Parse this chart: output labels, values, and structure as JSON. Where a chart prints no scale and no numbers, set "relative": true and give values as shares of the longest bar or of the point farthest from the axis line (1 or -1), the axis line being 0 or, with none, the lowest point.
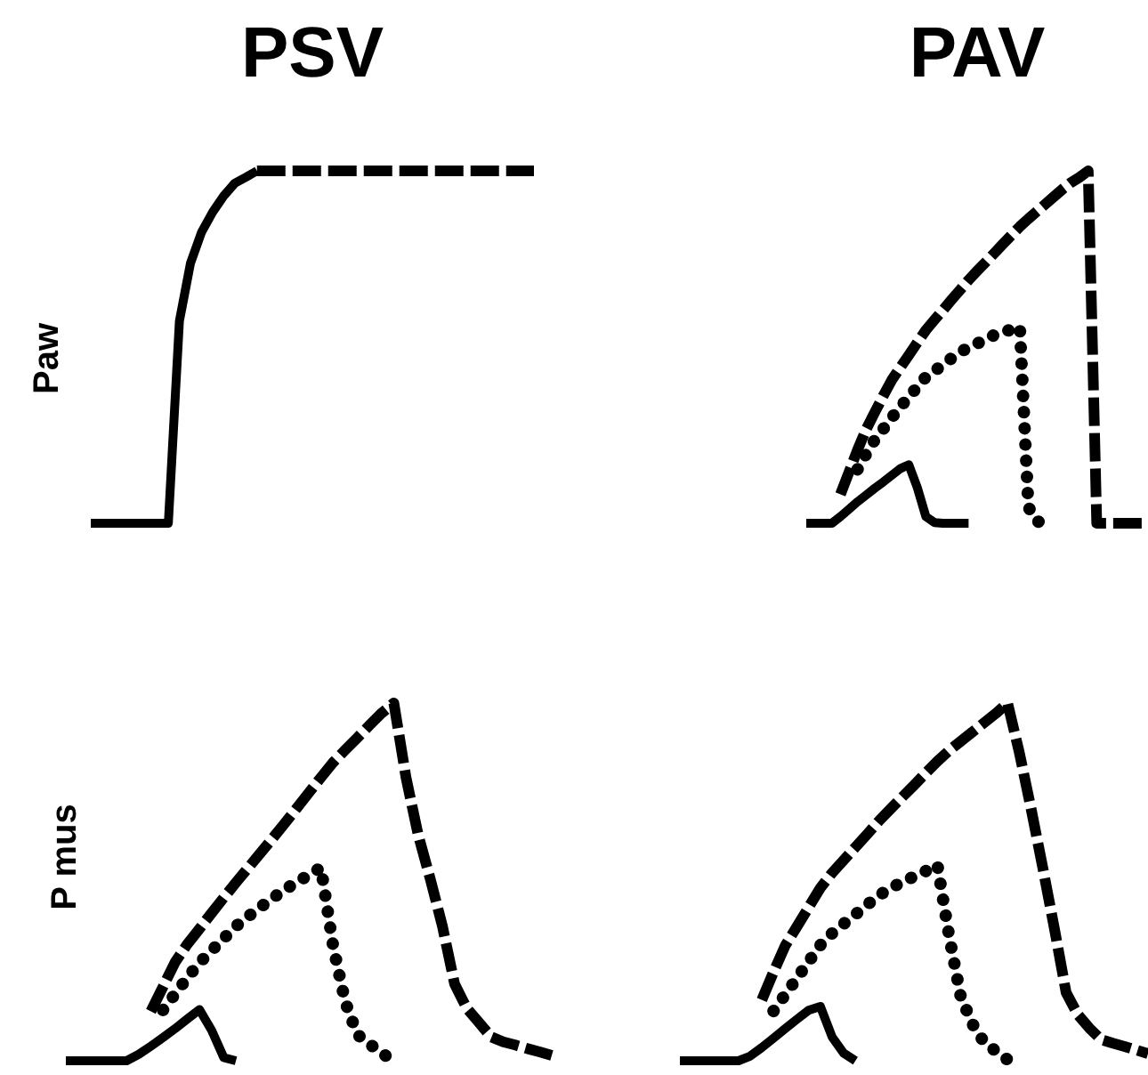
{
  "chart_data": [
    {
      "type": "line",
      "title": "PSV",
      "ylabel": "Paw",
      "relative": true,
      "marker": "none",
      "categories": [
        null,
        null,
        null,
        null,
        null,
        null,
        null,
        null,
        null,
        null,
        null,
        null,
        null,
        null,
        null,
        null,
        null,
        null,
        null,
        null,
        null,
        null,
        null,
        null,
        null,
        null,
        null,
        null,
        null,
        null,
        null,
        null,
        null,
        null,
        null,
        null,
        null,
        null,
        null,
        null,
        null
      ],
      "series": [
        {
          "color": "#000000",
          "line_style": "solid",
          "values": [
            0,
            0,
            0,
            0,
            0,
            0,
            0,
            0,
            0.574,
            0.738,
            0.826,
            0.883,
            0.929,
            0.965,
            0.982,
            1,
            null,
            null,
            null,
            null,
            null,
            null,
            null,
            null,
            null,
            null,
            null,
            null,
            null,
            null,
            null,
            null,
            null,
            null,
            null,
            null,
            null,
            null,
            null,
            null,
            null
          ]
        },
        {
          "color": "#000000",
          "line_style": "dashed",
          "values": [
            null,
            null,
            null,
            null,
            null,
            null,
            null,
            null,
            null,
            null,
            null,
            null,
            null,
            null,
            null,
            1,
            1,
            1,
            1,
            1,
            1,
            1,
            1,
            1,
            1,
            1,
            1,
            1,
            1,
            1,
            1,
            1,
            1,
            1,
            1,
            1,
            1,
            1,
            1,
            1,
            1
          ]
        }
      ]
    },
    {
      "type": "line",
      "title": "PAV",
      "relative": true,
      "marker": "none",
      "categories": [
        null,
        null,
        null,
        null,
        null,
        null,
        null,
        null,
        null,
        null,
        null,
        null,
        null,
        null,
        null,
        null,
        null,
        null,
        null,
        null,
        null,
        null,
        null,
        null,
        null,
        null,
        null,
        null,
        null,
        null,
        null,
        null,
        null,
        null,
        null,
        null,
        null,
        null,
        null,
        null,
        null
      ],
      "series": [
        {
          "color": "#000000",
          "line_style": "solid",
          "values": [
            0,
            0,
            0,
            0,
            0.019,
            0.04,
            0.061,
            0.08,
            0.099,
            0.117,
            0.136,
            0.155,
            0.166,
            0.101,
            0.019,
            0.002,
            0,
            0,
            0,
            0,
            null,
            null,
            null,
            null,
            null,
            null,
            null,
            null,
            null,
            null,
            null,
            null,
            null,
            null,
            null,
            null,
            null,
            null,
            null,
            null,
            null
          ]
        },
        {
          "color": "#000000",
          "line_style": "dotted",
          "values": [
            null,
            null,
            null,
            null,
            null,
            null,
            0.153,
            0.196,
            0.236,
            0.267,
            0.299,
            0.33,
            0.358,
            0.387,
            0.415,
            0.432,
            0.45,
            0.468,
            0.486,
            0.498,
            0.51,
            0.522,
            0.534,
            0.542,
            0.55,
            0.557,
            0.046,
            0.005,
            0.003,
            0,
            null,
            null,
            null,
            null,
            null,
            null,
            null,
            null,
            null,
            null,
            null
          ]
        },
        {
          "color": "#000000",
          "line_style": "dashed",
          "values": [
            null,
            null,
            null,
            null,
            0.082,
            0.145,
            0.208,
            0.266,
            0.314,
            0.361,
            0.406,
            0.442,
            0.477,
            0.513,
            0.548,
            0.577,
            0.605,
            0.634,
            0.662,
            0.69,
            0.716,
            0.741,
            0.766,
            0.792,
            0.817,
            0.842,
            0.864,
            0.885,
            0.906,
            0.927,
            0.948,
            0.967,
            0.982,
            1,
            0,
            0,
            0,
            0,
            0,
            0,
            0
          ]
        }
      ]
    },
    {
      "type": "line",
      "ylabel": "P mus",
      "relative": true,
      "marker": "none",
      "categories": [
        null,
        null,
        null,
        null,
        null,
        null,
        null,
        null,
        null,
        null,
        null,
        null,
        null,
        null,
        null,
        null,
        null,
        null,
        null,
        null,
        null,
        null,
        null,
        null,
        null,
        null,
        null,
        null,
        null,
        null,
        null,
        null,
        null,
        null,
        null,
        null,
        null,
        null,
        null,
        null,
        null
      ],
      "series": [
        {
          "color": "#000000",
          "line_style": "solid",
          "values": [
            0,
            0,
            0,
            0,
            0,
            0,
            0.018,
            0.041,
            0.065,
            0.09,
            0.117,
            0.143,
            0.085,
            0.009,
            0,
            null,
            null,
            null,
            null,
            null,
            null,
            null,
            null,
            null,
            null,
            null,
            null,
            null,
            null,
            null,
            null,
            null,
            null,
            null,
            null,
            null,
            null,
            null,
            null,
            null,
            null
          ]
        },
        {
          "color": "#000000",
          "line_style": "dotted",
          "values": [
            null,
            null,
            null,
            null,
            null,
            null,
            null,
            null,
            0.142,
            0.187,
            0.232,
            0.274,
            0.308,
            0.342,
            0.376,
            0.403,
            0.429,
            0.454,
            0.478,
            0.499,
            0.519,
            0.54,
            0.321,
            0.164,
            0.073,
            0.047,
            0.021,
            0,
            null,
            null,
            null,
            null,
            null,
            null,
            null,
            null,
            null,
            null,
            null,
            null,
            null
          ]
        },
        {
          "color": "#000000",
          "line_style": "dashed",
          "values": [
            null,
            null,
            null,
            null,
            null,
            null,
            null,
            0.138,
            0.207,
            0.276,
            0.326,
            0.369,
            0.413,
            0.456,
            0.498,
            0.539,
            0.58,
            0.621,
            0.663,
            0.706,
            0.749,
            0.792,
            0.834,
            0.869,
            0.903,
            0.938,
            0.972,
            1,
            0.792,
            0.632,
            0.508,
            0.376,
            0.215,
            0.147,
            0.107,
            0.067,
            0.053,
            0.044,
            0.034,
            0.025,
            0.015
          ]
        }
      ]
    },
    {
      "type": "line",
      "relative": true,
      "marker": "none",
      "categories": [
        null,
        null,
        null,
        null,
        null,
        null,
        null,
        null,
        null,
        null,
        null,
        null,
        null,
        null,
        null,
        null,
        null,
        null,
        null,
        null,
        null,
        null,
        null,
        null,
        null,
        null,
        null,
        null,
        null,
        null,
        null,
        null,
        null,
        null,
        null,
        null,
        null,
        null,
        null,
        null,
        null
      ],
      "series": [
        {
          "color": "#000000",
          "line_style": "solid",
          "values": [
            0,
            0,
            0,
            0,
            0,
            0,
            0.013,
            0.037,
            0.063,
            0.09,
            0.116,
            0.141,
            0.152,
            0.067,
            0.021,
            0,
            null,
            null,
            null,
            null,
            null,
            null,
            null,
            null,
            null,
            null,
            null,
            null,
            null,
            null,
            null,
            null,
            null,
            null,
            null,
            null,
            null,
            null,
            null,
            null,
            null
          ]
        },
        {
          "color": "#000000",
          "line_style": "dotted",
          "values": [
            null,
            null,
            null,
            null,
            null,
            null,
            null,
            null,
            0.139,
            0.185,
            0.231,
            0.277,
            0.323,
            0.356,
            0.383,
            0.409,
            0.436,
            0.462,
            0.483,
            0.499,
            0.515,
            0.53,
            0.548,
            0.35,
            0.179,
            0.103,
            0.051,
            0.027,
            0.003,
            null,
            null,
            null,
            null,
            null,
            null,
            null,
            null,
            null,
            null,
            null,
            null
          ]
        },
        {
          "color": "#000000",
          "line_style": "dashed",
          "values": [
            null,
            null,
            null,
            null,
            null,
            null,
            null,
            0.17,
            0.248,
            0.322,
            0.375,
            0.429,
            0.483,
            0.525,
            0.561,
            0.597,
            0.633,
            0.67,
            0.704,
            0.737,
            0.77,
            0.804,
            0.837,
            0.867,
            0.893,
            0.919,
            0.945,
            0.971,
            1,
            0.862,
            0.706,
            0.541,
            0.37,
            0.191,
            0.129,
            0.091,
            0.059,
            0.049,
            0.04,
            0.03,
            0.02
          ]
        }
      ]
    }
  ]
}
